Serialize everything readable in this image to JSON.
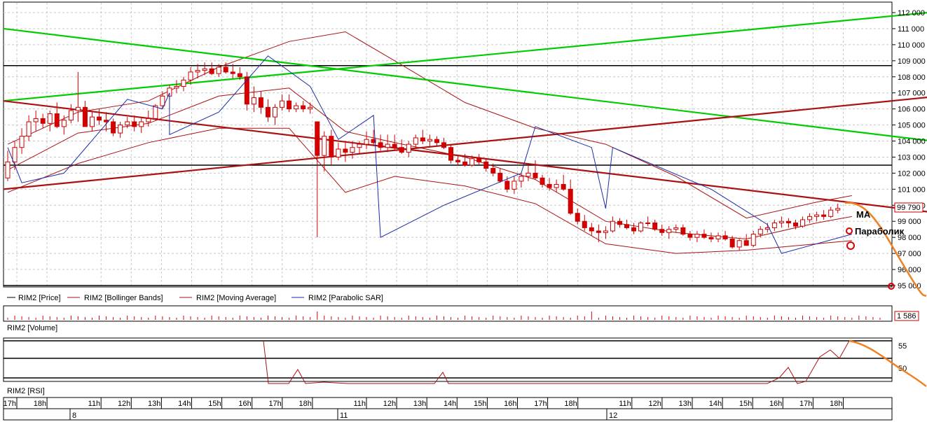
{
  "chart_data": {
    "type": "candlestick",
    "instrument": "RIM2",
    "price_axis": {
      "ticks": [
        "112 000",
        "111 000",
        "110 000",
        "109 000",
        "108 000",
        "107 000",
        "106 000",
        "105 000",
        "104 000",
        "103 000",
        "102 000",
        "101 000",
        "100 000",
        "99 000",
        "98 000",
        "97 000",
        "96 000",
        "95 000"
      ],
      "ylim": [
        95000,
        112000
      ],
      "last_price": "99 790"
    },
    "time_axis": {
      "hour_labels": [
        "17h",
        "18h",
        "11h",
        "12h",
        "13h",
        "14h",
        "15h",
        "16h",
        "17h",
        "18h",
        "11h",
        "12h",
        "13h",
        "14h",
        "15h",
        "16h",
        "17h",
        "18h",
        "11h",
        "12h",
        "13h",
        "14h",
        "15h",
        "16h",
        "17h",
        "18h"
      ],
      "day_labels": [
        "8",
        "11",
        "12"
      ]
    },
    "candles_ohlc": [
      [
        101700,
        103400,
        101500,
        102700
      ],
      [
        102700,
        104000,
        102200,
        103600
      ],
      [
        103600,
        104800,
        103200,
        104300
      ],
      [
        104300,
        105600,
        104000,
        105200
      ],
      [
        105200,
        105900,
        104600,
        105400
      ],
      [
        105400,
        105700,
        104800,
        105100
      ],
      [
        105100,
        105900,
        104600,
        105700
      ],
      [
        105700,
        106400,
        104800,
        104900
      ],
      [
        104900,
        105600,
        104400,
        105300
      ],
      [
        105300,
        106300,
        105100,
        105900
      ],
      [
        105900,
        108300,
        105200,
        106100
      ],
      [
        106100,
        106500,
        104900,
        104900
      ],
      [
        104900,
        105800,
        104600,
        105500
      ],
      [
        105500,
        106000,
        105000,
        105300
      ],
      [
        105300,
        105800,
        104600,
        105200
      ],
      [
        105200,
        105400,
        104300,
        104500
      ],
      [
        104500,
        105200,
        104200,
        105000
      ],
      [
        105000,
        105500,
        104800,
        105200
      ],
      [
        105200,
        105600,
        104600,
        104900
      ],
      [
        104900,
        105500,
        104500,
        105200
      ],
      [
        105200,
        105900,
        104900,
        105400
      ],
      [
        105400,
        106300,
        105300,
        106200
      ],
      [
        106200,
        107100,
        106000,
        106800
      ],
      [
        106800,
        107500,
        106600,
        107300
      ],
      [
        107300,
        107800,
        107000,
        107400
      ],
      [
        107400,
        108000,
        107100,
        107800
      ],
      [
        107800,
        108600,
        107500,
        108300
      ],
      [
        108300,
        108800,
        107900,
        108400
      ],
      [
        108400,
        108900,
        108100,
        108500
      ],
      [
        108500,
        108900,
        108100,
        108200
      ],
      [
        108200,
        108800,
        108000,
        108600
      ],
      [
        108600,
        108900,
        108200,
        108300
      ],
      [
        108300,
        108800,
        107900,
        108200
      ],
      [
        108200,
        108600,
        107800,
        108000
      ],
      [
        108000,
        108300,
        105900,
        106300
      ],
      [
        106300,
        107400,
        105800,
        106700
      ],
      [
        106700,
        107100,
        105700,
        106100
      ],
      [
        106100,
        106600,
        105200,
        105500
      ],
      [
        105500,
        106300,
        105000,
        106100
      ],
      [
        106100,
        106900,
        105900,
        106500
      ],
      [
        106500,
        106900,
        105800,
        106000
      ],
      [
        106000,
        106400,
        105800,
        106200
      ],
      [
        106200,
        106500,
        105800,
        106000
      ],
      [
        106000,
        106400,
        105700,
        106100
      ],
      [
        105200,
        105200,
        98000,
        103100
      ],
      [
        103100,
        104600,
        102100,
        104300
      ],
      [
        104300,
        104700,
        102500,
        103000
      ],
      [
        103000,
        103900,
        102800,
        103500
      ],
      [
        103500,
        104000,
        102700,
        103300
      ],
      [
        103300,
        104000,
        102900,
        103600
      ],
      [
        103600,
        104000,
        103200,
        103800
      ],
      [
        103800,
        104600,
        103500,
        104100
      ],
      [
        104100,
        104700,
        103700,
        103900
      ],
      [
        103900,
        104400,
        103400,
        103600
      ],
      [
        103600,
        104400,
        103300,
        103800
      ],
      [
        103800,
        104400,
        103400,
        103600
      ],
      [
        103600,
        104100,
        103200,
        103300
      ],
      [
        103300,
        104000,
        103000,
        103800
      ],
      [
        103800,
        104400,
        103600,
        104200
      ],
      [
        104200,
        104700,
        103800,
        104000
      ],
      [
        104000,
        104400,
        103600,
        104100
      ],
      [
        104100,
        104300,
        103700,
        103900
      ],
      [
        103900,
        104200,
        103500,
        103600
      ],
      [
        103600,
        103800,
        102600,
        102800
      ],
      [
        102800,
        103100,
        102500,
        102700
      ],
      [
        102700,
        103200,
        102400,
        102500
      ],
      [
        102500,
        103100,
        102400,
        102900
      ],
      [
        102900,
        103200,
        102500,
        102700
      ],
      [
        102700,
        102900,
        102100,
        102300
      ],
      [
        102300,
        102600,
        101800,
        102000
      ],
      [
        102000,
        102300,
        101400,
        101500
      ],
      [
        101500,
        101800,
        100800,
        101000
      ],
      [
        101000,
        101800,
        100700,
        101500
      ],
      [
        101500,
        102000,
        101100,
        101800
      ],
      [
        101800,
        102500,
        101500,
        102000
      ],
      [
        102000,
        102800,
        101600,
        101700
      ],
      [
        101700,
        101900,
        101100,
        101300
      ],
      [
        101300,
        101700,
        100900,
        101100
      ],
      [
        101100,
        101600,
        100800,
        101300
      ],
      [
        101300,
        101900,
        100900,
        101000
      ],
      [
        101000,
        101600,
        99400,
        99500
      ],
      [
        99500,
        99800,
        98800,
        99000
      ],
      [
        99000,
        99400,
        98400,
        98600
      ],
      [
        98600,
        98900,
        98100,
        98400
      ],
      [
        98400,
        98800,
        97700,
        98300
      ],
      [
        98300,
        98700,
        97900,
        98400
      ],
      [
        98400,
        99300,
        98300,
        99000
      ],
      [
        99000,
        99200,
        98600,
        98800
      ],
      [
        98800,
        99100,
        98500,
        98600
      ],
      [
        98600,
        98900,
        98200,
        98400
      ],
      [
        98400,
        99000,
        98300,
        98900
      ],
      [
        98900,
        99300,
        98700,
        98900
      ],
      [
        98900,
        99100,
        98400,
        98500
      ],
      [
        98500,
        98800,
        98100,
        98300
      ],
      [
        98300,
        98700,
        97900,
        98500
      ],
      [
        98500,
        98800,
        98300,
        98600
      ],
      [
        98600,
        98800,
        98100,
        98200
      ],
      [
        98200,
        98400,
        97800,
        98000
      ],
      [
        98000,
        98400,
        97700,
        98200
      ],
      [
        98200,
        98500,
        97900,
        98000
      ],
      [
        98000,
        98300,
        97700,
        97900
      ],
      [
        97900,
        98300,
        97700,
        98100
      ],
      [
        98100,
        98400,
        97800,
        97900
      ],
      [
        97900,
        98100,
        97300,
        97400
      ],
      [
        97400,
        97900,
        97200,
        97800
      ],
      [
        97800,
        98200,
        97500,
        97500
      ],
      [
        97500,
        98400,
        97400,
        98200
      ],
      [
        98200,
        98700,
        98000,
        98500
      ],
      [
        98500,
        98900,
        98300,
        98600
      ],
      [
        98600,
        99100,
        98400,
        98900
      ],
      [
        98900,
        99300,
        98600,
        99000
      ],
      [
        99000,
        99200,
        98600,
        98900
      ],
      [
        98900,
        99100,
        98500,
        98700
      ],
      [
        98700,
        99300,
        98600,
        99100
      ],
      [
        99100,
        99500,
        98900,
        99300
      ],
      [
        99300,
        99600,
        99000,
        99400
      ],
      [
        99400,
        99700,
        99100,
        99300
      ],
      [
        99300,
        99900,
        99200,
        99700
      ],
      [
        99700,
        100100,
        99500,
        99800
      ]
    ],
    "channels": [
      {
        "color": "#00cc00",
        "points": [
          [
            0,
            106500
          ],
          [
            135,
            112200
          ]
        ]
      },
      {
        "color": "#00cc00",
        "points": [
          [
            0,
            111000
          ],
          [
            210,
            99800
          ]
        ]
      },
      {
        "color": "#aa1111",
        "points": [
          [
            0,
            101000
          ],
          [
            210,
            110200
          ]
        ]
      },
      {
        "color": "#aa1111",
        "points": [
          [
            0,
            106500
          ],
          [
            210,
            95400
          ]
        ]
      }
    ],
    "horizontal_levels": [
      108700,
      102500,
      95000
    ],
    "bollinger_upper": [
      [
        0,
        103800
      ],
      [
        10,
        105800
      ],
      [
        20,
        106500
      ],
      [
        30,
        108600
      ],
      [
        40,
        110200
      ],
      [
        48,
        110800
      ],
      [
        55,
        109000
      ],
      [
        65,
        106400
      ],
      [
        75,
        104800
      ],
      [
        85,
        103800
      ],
      [
        95,
        101800
      ],
      [
        105,
        99200
      ],
      [
        115,
        100200
      ],
      [
        120,
        100600
      ]
    ],
    "bollinger_lower": [
      [
        0,
        100800
      ],
      [
        10,
        102600
      ],
      [
        20,
        103900
      ],
      [
        30,
        104800
      ],
      [
        40,
        104800
      ],
      [
        48,
        100800
      ],
      [
        55,
        101800
      ],
      [
        65,
        101200
      ],
      [
        75,
        100100
      ],
      [
        85,
        97600
      ],
      [
        95,
        97000
      ],
      [
        105,
        97200
      ],
      [
        115,
        97600
      ],
      [
        120,
        97800
      ]
    ],
    "moving_average": [
      [
        0,
        102200
      ],
      [
        10,
        104500
      ],
      [
        20,
        105100
      ],
      [
        30,
        106800
      ],
      [
        40,
        107300
      ],
      [
        48,
        104600
      ],
      [
        55,
        103900
      ],
      [
        65,
        103000
      ],
      [
        75,
        101600
      ],
      [
        85,
        99000
      ],
      [
        95,
        98300
      ],
      [
        105,
        97900
      ],
      [
        115,
        98900
      ],
      [
        120,
        99300
      ]
    ],
    "parabolic_sar": [
      [
        0,
        103600
      ],
      [
        2,
        101400
      ],
      [
        8,
        102000
      ],
      [
        17,
        106600
      ],
      [
        22,
        106000
      ],
      [
        23,
        107000
      ],
      [
        23,
        104400
      ],
      [
        30,
        105800
      ],
      [
        37,
        109300
      ],
      [
        43,
        107400
      ],
      [
        47,
        104100
      ],
      [
        52,
        105600
      ],
      [
        53,
        98000
      ],
      [
        62,
        100000
      ],
      [
        73,
        102000
      ],
      [
        75,
        104900
      ],
      [
        83,
        103600
      ],
      [
        85,
        99800
      ],
      [
        86,
        103600
      ],
      [
        100,
        101000
      ],
      [
        108,
        98800
      ],
      [
        110,
        97000
      ],
      [
        120,
        98200
      ]
    ],
    "legend": [
      "RIM2 [Price]",
      "RIM2 [Bollinger Bands]",
      "RIM2 [Moving Average]",
      "RIM2 [Parabolic SAR]"
    ],
    "annotations": {
      "ma": "MA",
      "parabolic": "Параболик"
    },
    "volume": {
      "title": "RIM2 [Volume]",
      "last": "1 586"
    },
    "rsi": {
      "title": "RIM2 [RSI]",
      "ticks": [
        "55",
        "50"
      ]
    },
    "colors": {
      "bear": "#d40000",
      "bull_outline": "#cc0000",
      "forecast": "#f08020",
      "grid": "#c8c8c8"
    }
  }
}
